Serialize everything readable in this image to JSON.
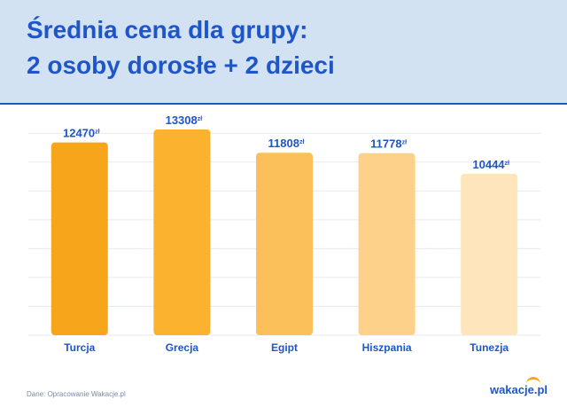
{
  "header": {
    "title_line1": "Średnia cena dla grupy:",
    "title_line2": "2 osoby dorosłe + 2 dzieci"
  },
  "chart_data": {
    "type": "bar",
    "categories": [
      "Turcja",
      "Grecja",
      "Egipt",
      "Hiszpania",
      "Tunezja"
    ],
    "values": [
      12470,
      13308,
      11808,
      11778,
      10444
    ],
    "value_unit": "zł",
    "ylim": [
      0,
      14000
    ],
    "grid": true,
    "bar_colors": [
      "#f7a61b",
      "#fbb22e",
      "#fcc05a",
      "#fdd18a",
      "#fee5bb"
    ]
  },
  "footer": {
    "source": "Dane: Opracowanie Wakacje.pl",
    "logo": "wakacje.pl"
  },
  "colors": {
    "accent": "#1f56c7",
    "header_bg": "#d3e2f3",
    "grid": "#e4eaf2"
  }
}
